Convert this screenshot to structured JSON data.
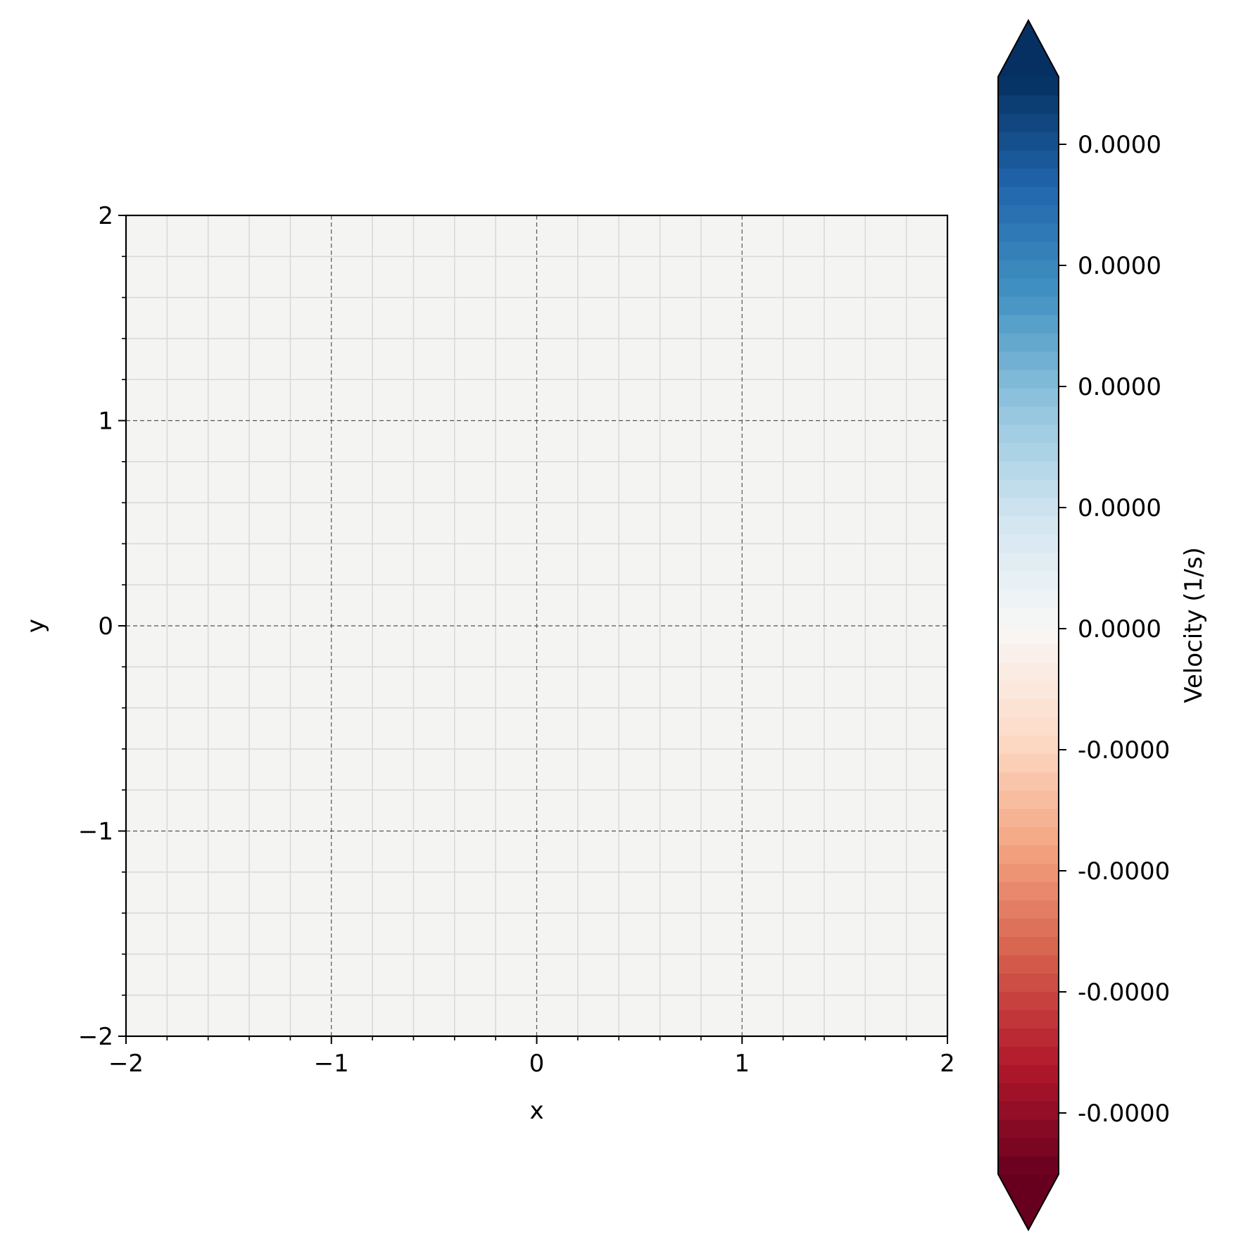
{
  "chart_data": {
    "type": "heatmap",
    "title": "",
    "xlabel": "x",
    "ylabel": "y",
    "xlim": [
      -2,
      2
    ],
    "ylim": [
      -2,
      2
    ],
    "x_ticks": [
      -2,
      -1,
      0,
      1,
      2
    ],
    "y_ticks": [
      -2,
      -1,
      0,
      1,
      2
    ],
    "x_tick_labels": [
      "−2",
      "−1",
      "0",
      "1",
      "2"
    ],
    "y_tick_labels": [
      "−2",
      "−1",
      "0",
      "1",
      "2"
    ],
    "minor_tick_step": 0.2,
    "field_value": 0.0,
    "field_color": "#f4f4f2",
    "grid": {
      "major": true,
      "major_style": "dashed",
      "major_color": "#555555",
      "minor": true,
      "minor_color": "#d9d9d9"
    },
    "colorbar": {
      "label": "Velocity (1/s)",
      "colormap": "RdBu",
      "extend": "both",
      "levels": 60,
      "colors_low_to_high": [
        "#67001f",
        "#b2182b",
        "#d6604d",
        "#f4a582",
        "#fddbc7",
        "#f7f7f7",
        "#d1e5f0",
        "#92c5de",
        "#4393c3",
        "#2166ac",
        "#053061"
      ],
      "tick_labels_top_to_bottom": [
        "0.0000",
        "0.0000",
        "0.0000",
        "0.0000",
        "0.0000",
        "-0.0000",
        "-0.0000",
        "-0.0000",
        "-0.0000"
      ]
    }
  }
}
